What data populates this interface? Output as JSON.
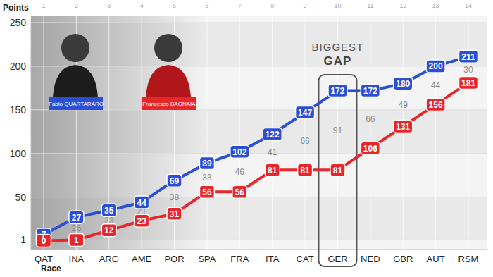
{
  "chart_data": {
    "type": "line",
    "y_label": "Points",
    "x_label": "Race",
    "race_numbers": [
      1,
      2,
      3,
      4,
      5,
      6,
      7,
      8,
      9,
      10,
      11,
      12,
      13,
      14
    ],
    "categories": [
      "QAT",
      "INA",
      "ARG",
      "AME",
      "POR",
      "SPA",
      "FRA",
      "ITA",
      "CAT",
      "GER",
      "NED",
      "GBR",
      "AUT",
      "RSM"
    ],
    "series": [
      {
        "name": "Fabio QUARTARARO",
        "color": "#2a4fd6",
        "marker": "rounded-box",
        "values": [
          7,
          27,
          35,
          44,
          69,
          89,
          102,
          122,
          147,
          172,
          172,
          180,
          200,
          211
        ]
      },
      {
        "name": "Francesco BAGNAIA",
        "color": "#e8262a",
        "marker": "rounded-box",
        "values": [
          0,
          1,
          12,
          23,
          31,
          56,
          56,
          81,
          81,
          81,
          106,
          131,
          156,
          181
        ]
      }
    ],
    "gaps": [
      null,
      26,
      23,
      21,
      38,
      33,
      46,
      41,
      66,
      91,
      66,
      49,
      44,
      30
    ],
    "annotation": {
      "lines": [
        "BIGGEST",
        "GAP"
      ],
      "category": "GER"
    },
    "ylim": [
      -10,
      250
    ],
    "yticks": [
      1,
      50,
      100,
      150,
      200,
      250
    ],
    "grid": true,
    "data_labels": true,
    "legend": "upper left"
  }
}
